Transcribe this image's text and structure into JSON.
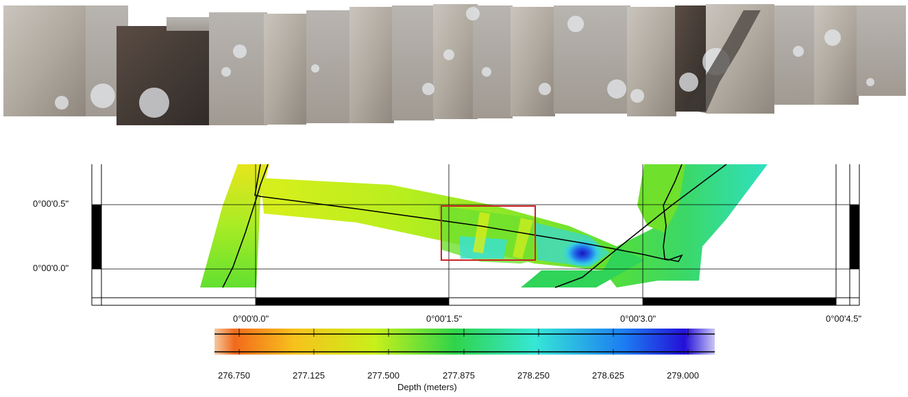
{
  "map": {
    "lat_labels": [
      "0°00'0.5\"",
      "0°00'0.0\""
    ],
    "lon_labels": [
      "0°00'0.0\"",
      "0°00'1.5\"",
      "0°00'3.0\"",
      "0°00'4.5\""
    ]
  },
  "colorbar": {
    "title": "Depth (meters)",
    "ticks": [
      "276.750",
      "277.125",
      "277.500",
      "277.875",
      "278.250",
      "278.625",
      "279.000"
    ],
    "colors": [
      "#f26a1b",
      "#f7c21c",
      "#c8f01a",
      "#2fd44a",
      "#36e7d6",
      "#1c7cf2",
      "#2410d8"
    ]
  },
  "photo_mosaic": {
    "tone": "#a9a298",
    "highlight": "#e6e8ec",
    "shadow": "#3f3a36"
  },
  "highlight_box_color": "#cc2222",
  "track_color": "#000000"
}
